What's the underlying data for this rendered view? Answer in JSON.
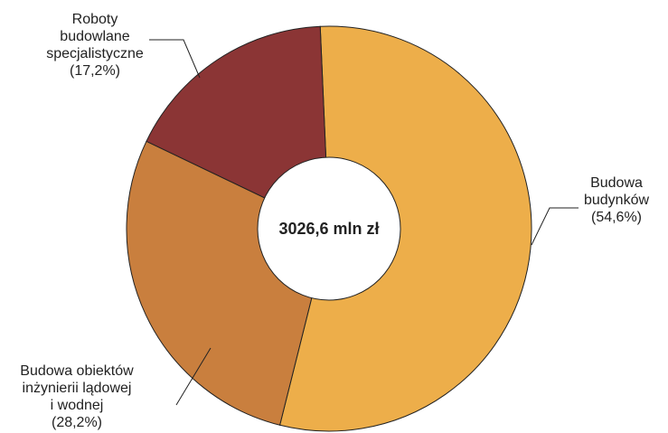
{
  "chart_data": {
    "type": "pie",
    "center_label": "3026,6 mln zł",
    "slices": [
      {
        "name_lines": [
          "Budowa",
          "budynków"
        ],
        "pct_label": "(54,6%)",
        "value": 54.6,
        "color": "#edae4a"
      },
      {
        "name_lines": [
          "Budowa obiektów",
          "inżynierii lądowej",
          "i wodnej"
        ],
        "pct_label": "(28,2%)",
        "value": 28.2,
        "color": "#c97f3e"
      },
      {
        "name_lines": [
          "Roboty",
          "budowlane",
          "specjalistyczne"
        ],
        "pct_label": "(17,2%)",
        "value": 17.2,
        "color": "#8b3535"
      }
    ],
    "legend": "none"
  }
}
